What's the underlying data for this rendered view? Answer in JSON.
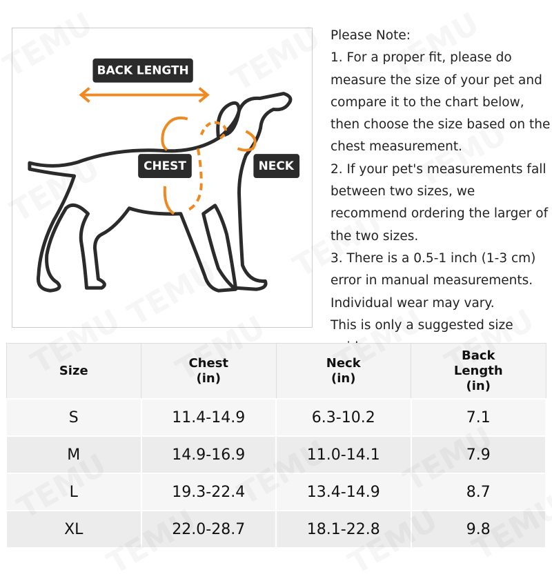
{
  "watermark": "TEMU",
  "diagram": {
    "back_length": "BACK LENGTH",
    "chest": "CHEST",
    "neck": "NECK"
  },
  "note": {
    "heading": "Please Note:",
    "items": [
      "1. For a proper fit, please do measure the size of your pet and compare it to the chart below, then choose the size based on the chest measurement.",
      "2. If your pet's measurements fall between two sizes, we recommend ordering the larger of the two sizes.",
      "3. There is a 0.5-1 inch (1-3 cm) error in manual measurements. Individual wear may vary.",
      "This is only a suggested size guide."
    ]
  },
  "table": {
    "header": [
      "Size",
      "Chest (in)",
      "Neck (in)",
      "Back Length (in)"
    ],
    "rows": [
      [
        "S",
        "11.4-14.9",
        "6.3-10.2",
        "7.1"
      ],
      [
        "M",
        "14.9-16.9",
        "11.0-14.1",
        "7.9"
      ],
      [
        "L",
        "19.3-22.4",
        "13.4-14.9",
        "8.7"
      ],
      [
        "XL",
        "22.0-28.7",
        "18.1-22.8",
        "9.8"
      ]
    ]
  }
}
